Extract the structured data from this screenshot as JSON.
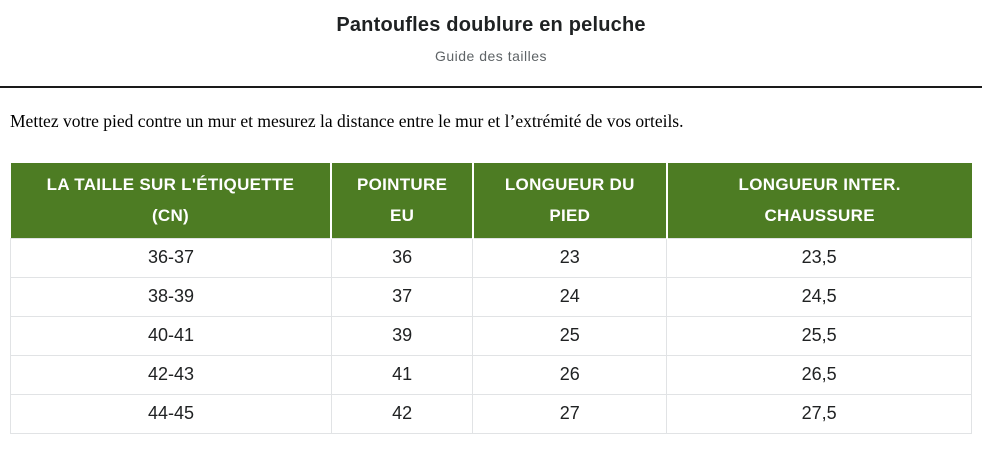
{
  "page": {
    "title": "Pantoufles doublure en peluche",
    "subtitle": "Guide des tailles",
    "instruction": "Mettez votre pied contre un mur et mesurez la distance entre le mur et l’extrémité de vos orteils."
  },
  "colors": {
    "header_bg": "#4d7c23",
    "header_text": "#ffffff",
    "title_text": "#1f2223",
    "subtitle_text": "#5e6366",
    "body_text": "#202223",
    "row_border": "#e1e3e5",
    "divider": "#1a1a1a"
  },
  "size_table": {
    "columns": [
      {
        "line1": "LA TAILLE SUR L'ÉTIQUETTE",
        "line2": "(CN)"
      },
      {
        "line1": "POINTURE",
        "line2": "EU"
      },
      {
        "line1": "LONGUEUR DU",
        "line2": "PIED"
      },
      {
        "line1": "LONGUEUR INTER.",
        "line2": "CHAUSSURE"
      }
    ],
    "rows": [
      [
        "36-37",
        "36",
        "23",
        "23,5"
      ],
      [
        "38-39",
        "37",
        "24",
        "24,5"
      ],
      [
        "40-41",
        "39",
        "25",
        "25,5"
      ],
      [
        "42-43",
        "41",
        "26",
        "26,5"
      ],
      [
        "44-45",
        "42",
        "27",
        "27,5"
      ]
    ]
  }
}
